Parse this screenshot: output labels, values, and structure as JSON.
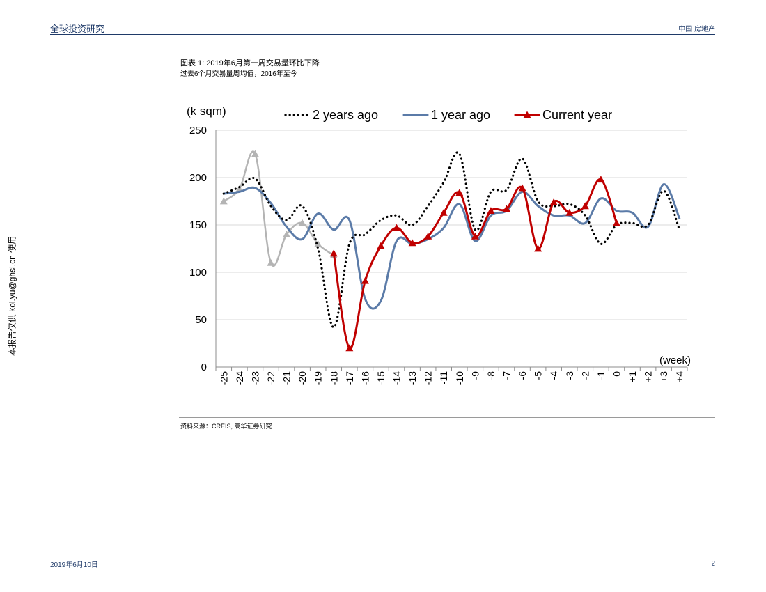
{
  "header": {
    "left_title": "全球投资研究",
    "right_title": "中国 房地产"
  },
  "caption": {
    "title": "图表 1: 2019年6月第一周交易量环比下降",
    "subtitle": "过去6个月交易量周均值，2016年至今"
  },
  "source": "资料来源：CREIS, 高华证券研究",
  "side_note": "本报告仅供 kol.yu@ghsl.cn 使用",
  "footer": {
    "date": "2019年6月10日",
    "page": "2"
  },
  "chart_data": {
    "type": "line",
    "ylabel": "(k sqm)",
    "xlabel": "(week)",
    "ylim": [
      0,
      250
    ],
    "yticks": [
      0,
      50,
      100,
      150,
      200,
      250
    ],
    "categories": [
      "-25",
      "-24",
      "-23",
      "-22",
      "-21",
      "-20",
      "-19",
      "-18",
      "-17",
      "-16",
      "-15",
      "-14",
      "-13",
      "-12",
      "-11",
      "-10",
      "-9",
      "-8",
      "-7",
      "-6",
      "-5",
      "-4",
      "-3",
      "-2",
      "-1",
      "0",
      "+1",
      "+2",
      "+3",
      "+4"
    ],
    "grid": true,
    "legend_position": "top",
    "series": [
      {
        "name": "2 years ago",
        "style": "dotted",
        "color": "#000000",
        "values": [
          183,
          190,
          199,
          170,
          155,
          170,
          125,
          42,
          130,
          140,
          155,
          160,
          150,
          170,
          195,
          225,
          145,
          185,
          187,
          220,
          175,
          170,
          172,
          160,
          130,
          150,
          152,
          150,
          186,
          145
        ]
      },
      {
        "name": "1 year ago",
        "style": "solid",
        "color": "#5b7ba8",
        "values": [
          183,
          185,
          189,
          173,
          148,
          135,
          162,
          145,
          155,
          72,
          70,
          133,
          130,
          135,
          147,
          172,
          133,
          160,
          165,
          185,
          170,
          160,
          160,
          152,
          178,
          165,
          163,
          148,
          193,
          157
        ]
      },
      {
        "name": "Current year",
        "style": "solid-triangle",
        "color": "#c00000",
        "values": [
          null,
          null,
          null,
          null,
          null,
          null,
          null,
          120,
          20,
          91,
          128,
          147,
          131,
          138,
          163,
          184,
          138,
          165,
          167,
          189,
          125,
          174,
          163,
          170,
          198,
          152,
          null,
          null,
          null,
          null
        ]
      },
      {
        "name": "",
        "style": "solid-triangle",
        "color": "#b4b4b4",
        "values": [
          175,
          188,
          225,
          110,
          140,
          152,
          130,
          118,
          null,
          null,
          null,
          null,
          null,
          null,
          null,
          null,
          null,
          null,
          null,
          null,
          null,
          null,
          null,
          null,
          null,
          null,
          null,
          null,
          null,
          null
        ]
      }
    ]
  }
}
